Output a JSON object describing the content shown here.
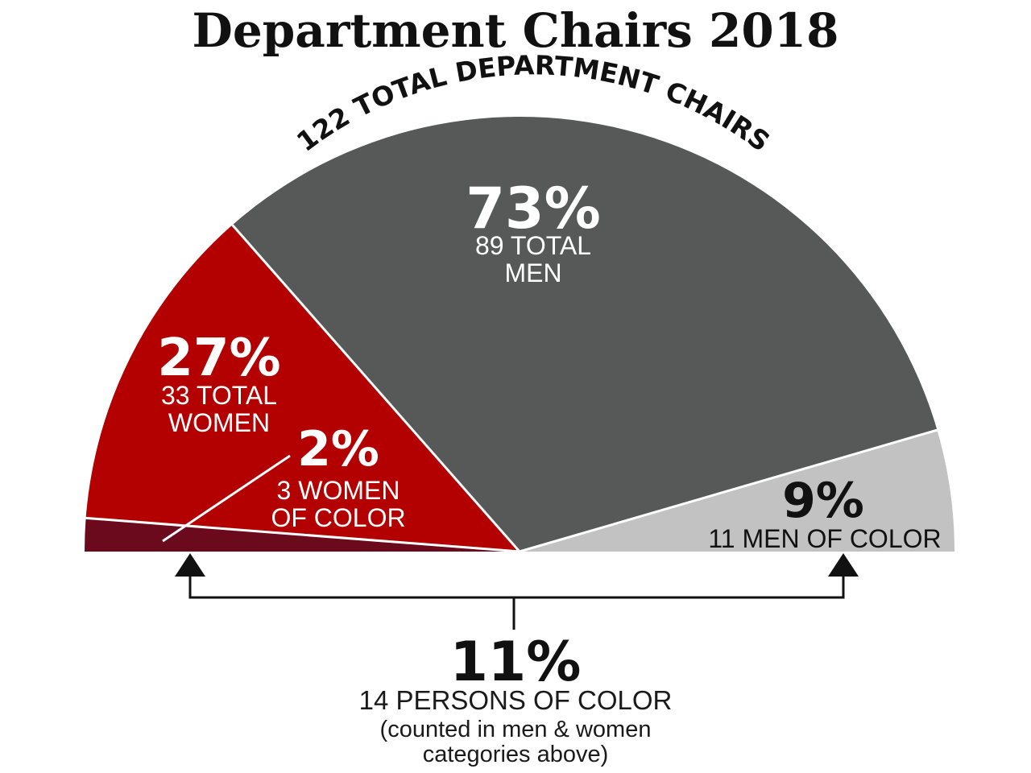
{
  "chart_data": {
    "type": "pie",
    "variant": "semicircle",
    "title": "Department Chairs 2018",
    "arc_label": "122 TOTAL DEPARTMENT CHAIRS",
    "total": 122,
    "slices": [
      {
        "name": "women_of_color",
        "count": 3,
        "pct_label": "2%",
        "sub_label": [
          "3 WOMEN",
          "OF COLOR"
        ],
        "color": "#6b0a1c"
      },
      {
        "name": "women_other",
        "count": 30,
        "color": "#b30000"
      },
      {
        "name": "men_other",
        "count": 78,
        "color": "#565957"
      },
      {
        "name": "men_of_color",
        "count": 11,
        "pct_label": "9%",
        "sub_label": [
          "11 MEN OF COLOR"
        ],
        "color": "#c2c2c2"
      }
    ],
    "groups": [
      {
        "name": "women",
        "count": 33,
        "pct_label": "27%",
        "sub_label": [
          "33 TOTAL",
          "WOMEN"
        ]
      },
      {
        "name": "men",
        "count": 89,
        "pct_label": "73%",
        "sub_label": [
          "89 TOTAL",
          "MEN"
        ]
      }
    ],
    "combined": {
      "pct_label": "11%",
      "sub_label": "14 PERSONS OF COLOR",
      "note": [
        "(counted in men & women",
        "categories above)"
      ],
      "count": 14
    }
  },
  "colors": {
    "text_dark": "#111111",
    "text_light": "#ffffff",
    "divider": "#ffffff"
  }
}
